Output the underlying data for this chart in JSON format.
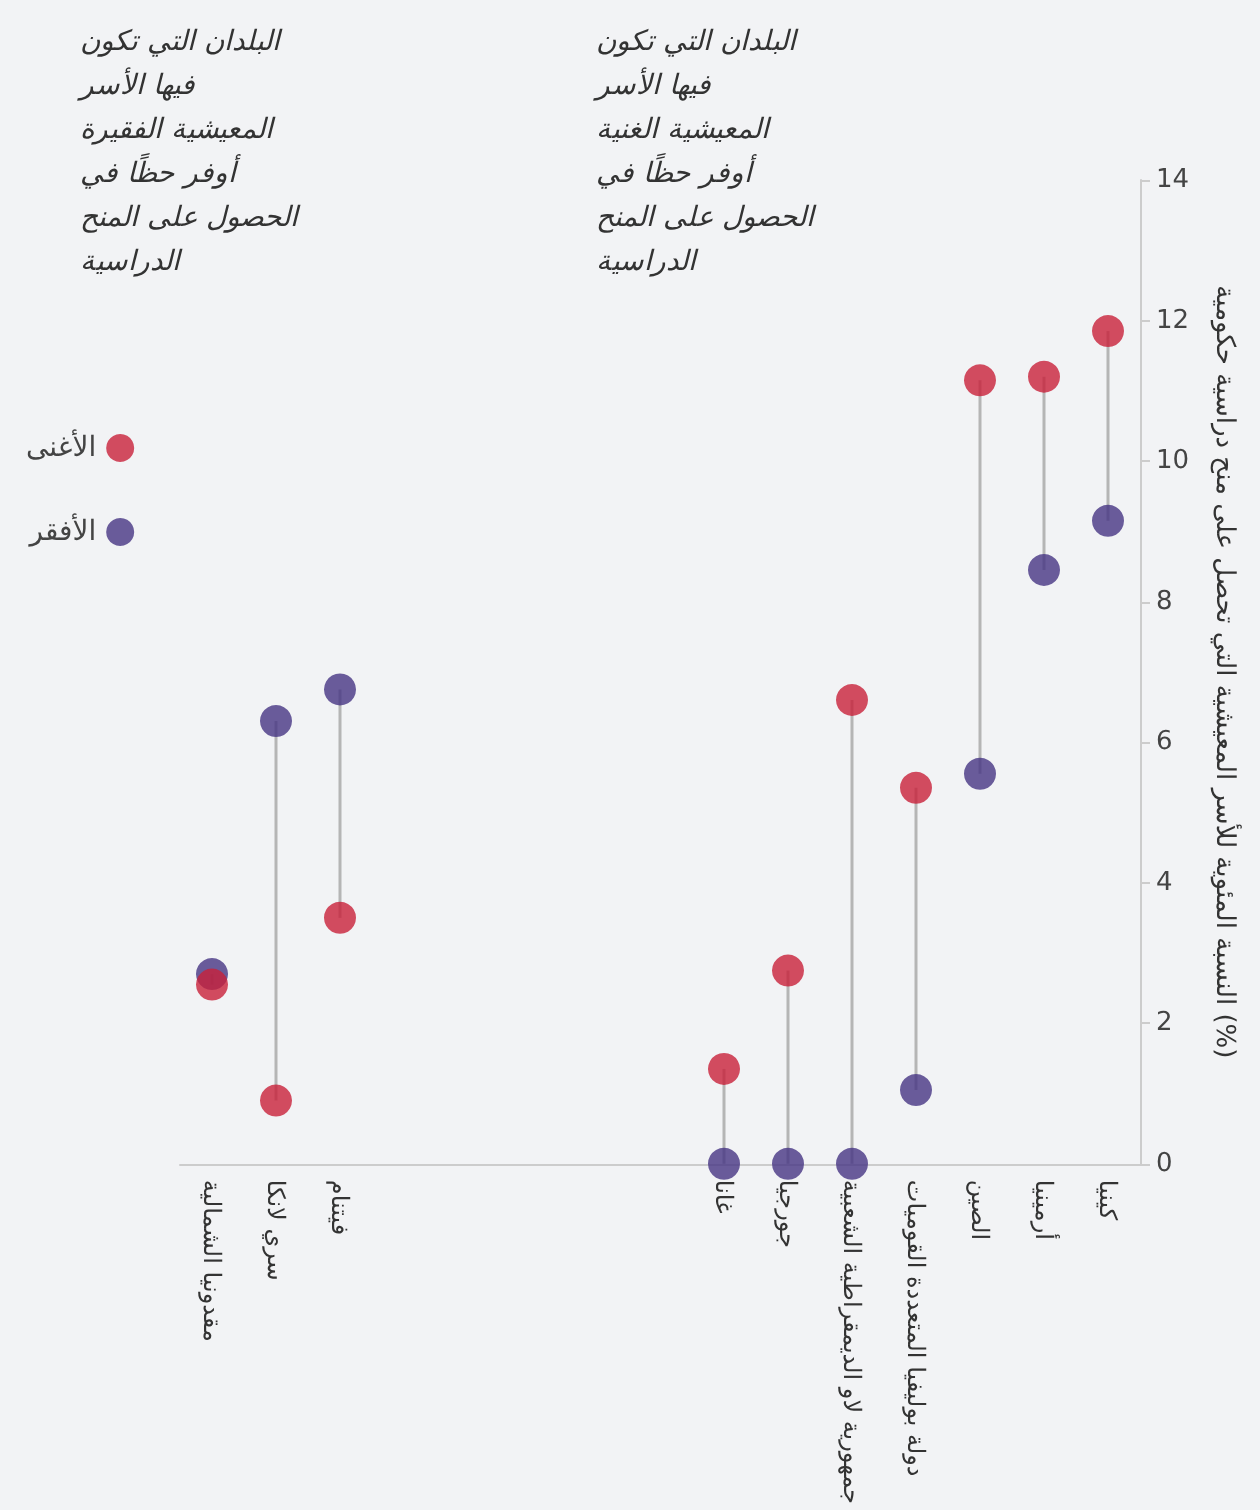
{
  "chart_data": {
    "type": "scatter",
    "ylabel": "النسبة المئوية للأسر المعيشية التي تحصل على منح دراسية حكومية (%)",
    "annotations": [
      "البلدان التي تكون فيها الأسر المعيشية الغنية أوفر حظًا في الحصول على المنح الدراسية",
      "البلدان التي تكون فيها الأسر المعيشية الفقيرة أوفر حظًا في الحصول على المنح الدراسية"
    ],
    "categories": [
      "مقدونيا الشمالية",
      "سري لانكا",
      "فيتنام",
      null,
      null,
      null,
      null,
      null,
      "غانا",
      "جورجيا",
      "جمهورية لاو الديمقراطية الشعبية",
      "دولة بوليفيا المتعددة القوميات",
      "الصين",
      "أرمينيا",
      "كينيا"
    ],
    "series": [
      {
        "name": "الأغنى",
        "color": "#c8203a",
        "values": [
          2.55,
          0.9,
          3.5,
          null,
          null,
          null,
          null,
          null,
          1.35,
          2.75,
          6.6,
          5.35,
          11.15,
          11.2,
          11.85
        ]
      },
      {
        "name": "الأفقر",
        "color": "#463583",
        "values": [
          2.7,
          6.3,
          6.75,
          null,
          null,
          null,
          null,
          null,
          0,
          0,
          0,
          1.05,
          5.55,
          8.45,
          9.15
        ]
      }
    ],
    "ylim": [
      0,
      14
    ],
    "yticks": [
      0,
      2,
      4,
      6,
      8,
      10,
      12,
      14
    ],
    "grid": false,
    "legend": "left",
    "marker": "circle"
  }
}
